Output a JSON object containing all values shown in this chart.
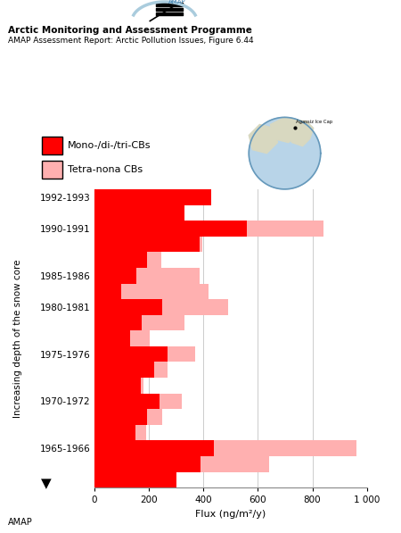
{
  "title_line1": "Arctic Monitoring and Assessment Programme",
  "title_line2": "AMAP Assessment Report: Arctic Pollution Issues, Figure 6.44",
  "legend_red": "Mono-/di-/tri-CBs",
  "legend_pink": "Tetra-nona CBs",
  "ylabel": "Increasing depth of the snow core",
  "xlabel": "Flux (ng/m²/y)",
  "color_red": "#ff0000",
  "color_pink": "#ffb0b0",
  "xlim": [
    0,
    1000
  ],
  "footer": "AMAP",
  "bar_data": [
    [
      19,
      430,
      350,
      "1992-1993"
    ],
    [
      18,
      330,
      255,
      ""
    ],
    [
      17,
      560,
      840,
      "1990-1991"
    ],
    [
      16,
      385,
      395,
      ""
    ],
    [
      15,
      195,
      245,
      ""
    ],
    [
      14,
      155,
      385,
      "1985-1986"
    ],
    [
      13,
      100,
      420,
      ""
    ],
    [
      12,
      250,
      490,
      "1980-1981"
    ],
    [
      11,
      175,
      330,
      ""
    ],
    [
      10,
      130,
      205,
      ""
    ],
    [
      9,
      270,
      370,
      "1975-1976"
    ],
    [
      8,
      220,
      270,
      ""
    ],
    [
      7,
      170,
      180,
      ""
    ],
    [
      6,
      240,
      320,
      "1970-1972"
    ],
    [
      5,
      195,
      250,
      ""
    ],
    [
      4,
      150,
      190,
      ""
    ],
    [
      3,
      440,
      960,
      "1965-1966"
    ],
    [
      2,
      390,
      640,
      ""
    ],
    [
      1,
      300,
      255,
      ""
    ]
  ]
}
